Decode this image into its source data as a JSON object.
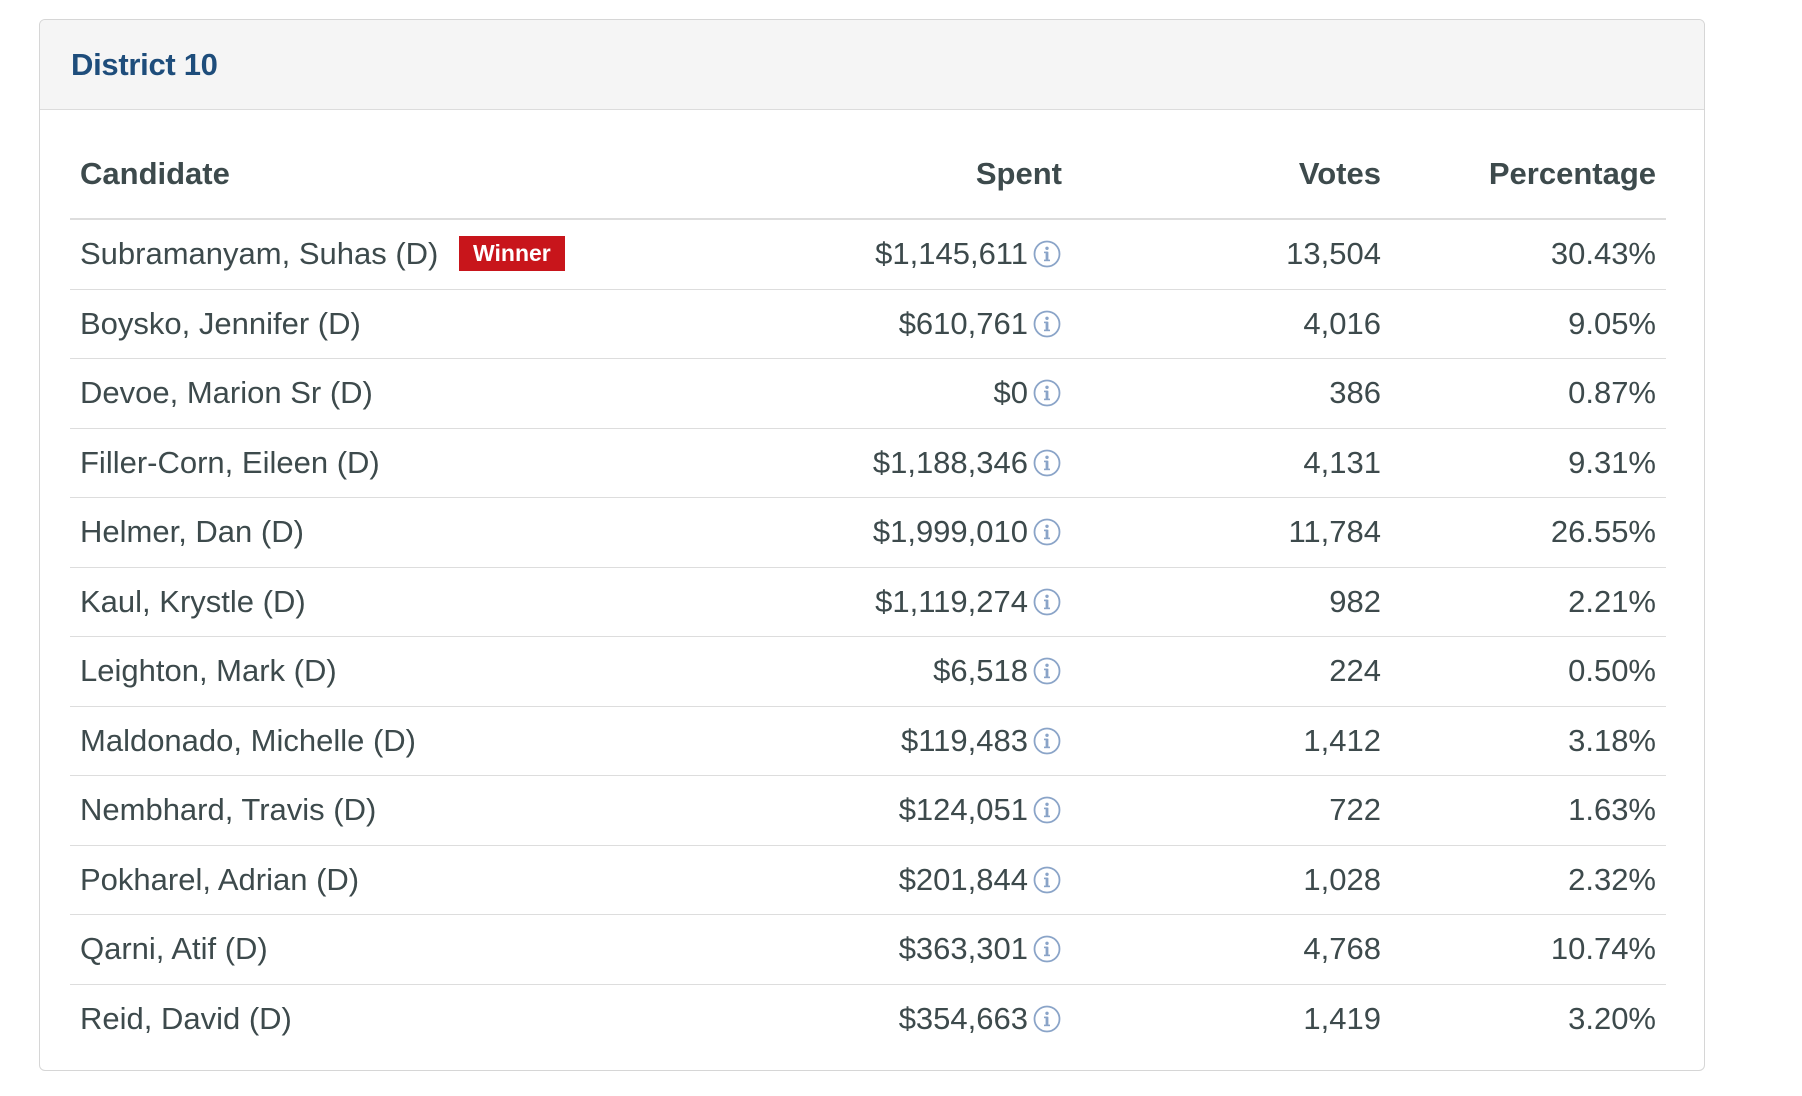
{
  "panel": {
    "title": "District 10"
  },
  "table": {
    "headers": {
      "candidate": "Candidate",
      "spent": "Spent",
      "votes": "Votes",
      "percentage": "Percentage"
    },
    "winner_label": "Winner",
    "rows": [
      {
        "candidate": "Subramanyam, Suhas (D)",
        "winner": true,
        "spent": "$1,145,611",
        "votes": "13,504",
        "percentage": "30.43%"
      },
      {
        "candidate": "Boysko, Jennifer (D)",
        "winner": false,
        "spent": "$610,761",
        "votes": "4,016",
        "percentage": "9.05%"
      },
      {
        "candidate": "Devoe, Marion Sr (D)",
        "winner": false,
        "spent": "$0",
        "votes": "386",
        "percentage": "0.87%"
      },
      {
        "candidate": "Filler-Corn, Eileen (D)",
        "winner": false,
        "spent": "$1,188,346",
        "votes": "4,131",
        "percentage": "9.31%"
      },
      {
        "candidate": "Helmer, Dan (D)",
        "winner": false,
        "spent": "$1,999,010",
        "votes": "11,784",
        "percentage": "26.55%"
      },
      {
        "candidate": "Kaul, Krystle (D)",
        "winner": false,
        "spent": "$1,119,274",
        "votes": "982",
        "percentage": "2.21%"
      },
      {
        "candidate": "Leighton, Mark (D)",
        "winner": false,
        "spent": "$6,518",
        "votes": "224",
        "percentage": "0.50%"
      },
      {
        "candidate": "Maldonado, Michelle (D)",
        "winner": false,
        "spent": "$119,483",
        "votes": "1,412",
        "percentage": "3.18%"
      },
      {
        "candidate": "Nembhard, Travis (D)",
        "winner": false,
        "spent": "$124,051",
        "votes": "722",
        "percentage": "1.63%"
      },
      {
        "candidate": "Pokharel, Adrian (D)",
        "winner": false,
        "spent": "$201,844",
        "votes": "1,028",
        "percentage": "2.32%"
      },
      {
        "candidate": "Qarni, Atif (D)",
        "winner": false,
        "spent": "$363,301",
        "votes": "4,768",
        "percentage": "10.74%"
      },
      {
        "candidate": "Reid, David (D)",
        "winner": false,
        "spent": "$354,663",
        "votes": "1,419",
        "percentage": "3.20%"
      }
    ]
  },
  "icons": {
    "spent_info": "info-circle-icon"
  },
  "colors": {
    "title": "#1e4d7b",
    "winner_badge": "#c8151b",
    "info_icon": "#8aa4c8",
    "text": "#3d4a4c"
  }
}
